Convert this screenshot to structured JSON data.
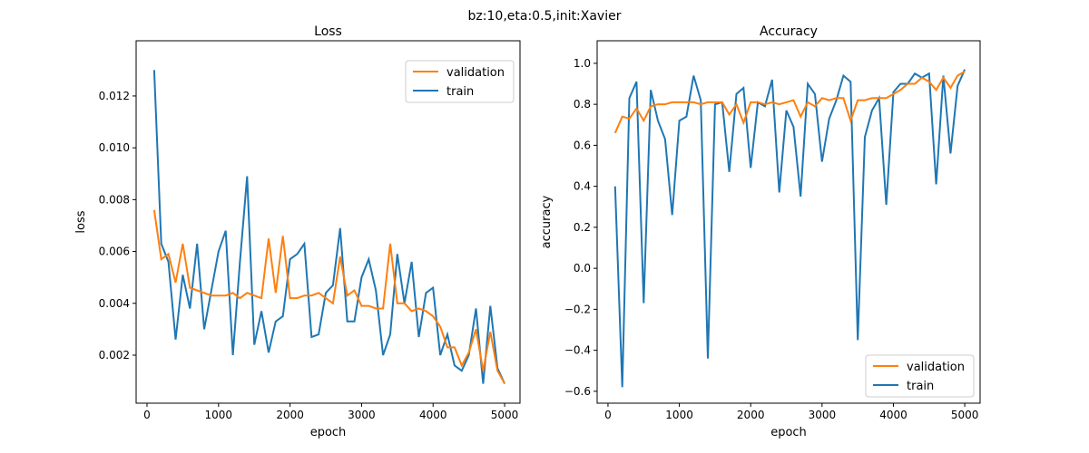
{
  "suptitle": "bz:10,eta:0.5,init:Xavier",
  "colors": {
    "validation": "#ff7f0e",
    "train": "#1f77b4"
  },
  "chart_data": [
    {
      "type": "line",
      "title": "Loss",
      "xlabel": "epoch",
      "ylabel": "loss",
      "xlim": [
        -152,
        5215
      ],
      "ylim": [
        0.000147,
        0.01413
      ],
      "xticks": [
        0,
        1000,
        2000,
        3000,
        4000,
        5000
      ],
      "yticks": [
        0.002,
        0.004,
        0.006,
        0.008,
        0.01,
        0.012
      ],
      "ytick_labels": [
        "0.002",
        "0.004",
        "0.006",
        "0.008",
        "0.010",
        "0.012"
      ],
      "legend": "top-right",
      "series": [
        {
          "name": "validation",
          "values": [
            0.0076,
            0.0057,
            0.0059,
            0.0048,
            0.0063,
            0.0046,
            0.0045,
            0.0044,
            0.0043,
            0.0043,
            0.0043,
            0.0044,
            0.0042,
            0.0044,
            0.0043,
            0.0042,
            0.0065,
            0.0044,
            0.0066,
            0.0042,
            0.0042,
            0.0043,
            0.0043,
            0.0044,
            0.0042,
            0.004,
            0.0058,
            0.0043,
            0.0045,
            0.0039,
            0.0039,
            0.0038,
            0.0038,
            0.0063,
            0.004,
            0.004,
            0.0037,
            0.0038,
            0.0037,
            0.0035,
            0.0031,
            0.0023,
            0.0023,
            0.0016,
            0.0021,
            0.003,
            0.0014,
            0.0029,
            0.0014,
            0.0009
          ]
        },
        {
          "name": "train",
          "values": [
            0.013,
            0.0063,
            0.0056,
            0.0026,
            0.0051,
            0.0038,
            0.0063,
            0.003,
            0.0045,
            0.006,
            0.0068,
            0.002,
            0.0056,
            0.0089,
            0.0024,
            0.0037,
            0.0021,
            0.0033,
            0.0035,
            0.0057,
            0.0059,
            0.0063,
            0.0027,
            0.0028,
            0.0044,
            0.0047,
            0.0069,
            0.0033,
            0.0033,
            0.005,
            0.0057,
            0.0045,
            0.002,
            0.0028,
            0.0059,
            0.004,
            0.0056,
            0.0027,
            0.0044,
            0.0046,
            0.002,
            0.0028,
            0.0016,
            0.0014,
            0.002,
            0.0038,
            0.0009,
            0.0039,
            0.0015,
            0.0009
          ]
        }
      ]
    },
    {
      "type": "line",
      "title": "Accuracy",
      "xlabel": "epoch",
      "ylabel": "accuracy",
      "xlim": [
        -152,
        5215
      ],
      "ylim": [
        -0.658,
        1.11
      ],
      "xticks": [
        0,
        1000,
        2000,
        3000,
        4000,
        5000
      ],
      "yticks": [
        -0.6,
        -0.4,
        -0.2,
        0.0,
        0.2,
        0.4,
        0.6,
        0.8,
        1.0
      ],
      "ytick_labels": [
        "−0.6",
        "−0.4",
        "−0.2",
        "0.0",
        "0.2",
        "0.4",
        "0.6",
        "0.8",
        "1.0"
      ],
      "legend": "lower-right",
      "series": [
        {
          "name": "validation",
          "values": [
            0.66,
            0.74,
            0.73,
            0.78,
            0.72,
            0.79,
            0.8,
            0.8,
            0.81,
            0.81,
            0.81,
            0.81,
            0.8,
            0.81,
            0.81,
            0.81,
            0.75,
            0.8,
            0.71,
            0.81,
            0.81,
            0.8,
            0.81,
            0.8,
            0.81,
            0.82,
            0.74,
            0.81,
            0.79,
            0.83,
            0.82,
            0.83,
            0.83,
            0.72,
            0.82,
            0.82,
            0.83,
            0.83,
            0.83,
            0.85,
            0.87,
            0.9,
            0.9,
            0.93,
            0.91,
            0.87,
            0.93,
            0.88,
            0.94,
            0.96
          ]
        },
        {
          "name": "train",
          "values": [
            0.4,
            -0.58,
            0.83,
            0.91,
            -0.17,
            0.87,
            0.72,
            0.63,
            0.26,
            0.72,
            0.74,
            0.94,
            0.82,
            -0.44,
            0.8,
            0.81,
            0.47,
            0.85,
            0.88,
            0.49,
            0.81,
            0.79,
            0.92,
            0.37,
            0.77,
            0.69,
            0.35,
            0.9,
            0.85,
            0.52,
            0.73,
            0.82,
            0.94,
            0.91,
            -0.35,
            0.64,
            0.77,
            0.83,
            0.31,
            0.86,
            0.9,
            0.9,
            0.95,
            0.93,
            0.95,
            0.41,
            0.94,
            0.56,
            0.89,
            0.97
          ]
        }
      ]
    }
  ],
  "x_values_start": 100,
  "x_values_step": 100
}
